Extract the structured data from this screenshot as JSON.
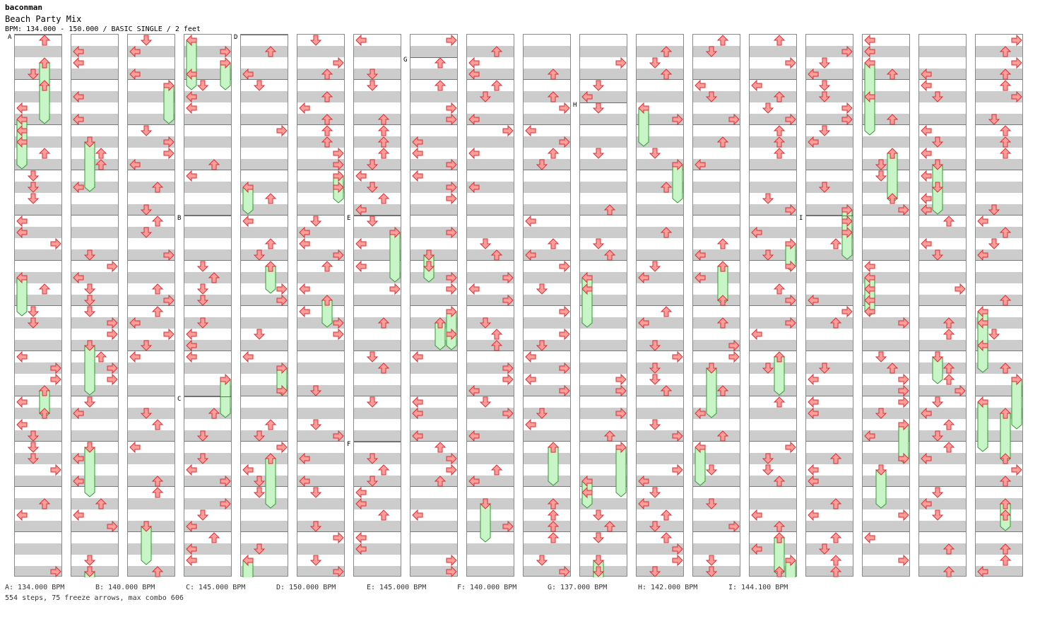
{
  "header": {
    "author": "baconman",
    "song_title": "Beach Party Mix",
    "info": "BPM: 134.000 - 150.000 / BASIC SINGLE / 2 feet"
  },
  "bpm_legend": [
    {
      "label": "A: 134.000 BPM"
    },
    {
      "label": "B: 140.000 BPM"
    },
    {
      "label": "C: 145.000 BPM"
    },
    {
      "label": "D: 150.000 BPM"
    },
    {
      "label": "E: 145.000 BPM"
    },
    {
      "label": "F: 140.000 BPM"
    },
    {
      "label": "G: 137.000 BPM"
    },
    {
      "label": "H: 142.000 BPM"
    },
    {
      "label": "I: 144.100 BPM"
    }
  ],
  "stats": "554 steps, 75 freeze arrows, max combo 606",
  "chart_data": {
    "type": "step-chart",
    "columns": 18,
    "measures_per_column": 12,
    "lanes": [
      "left",
      "down",
      "up",
      "right"
    ],
    "bpm_changes": [
      {
        "label": "A",
        "bpm": 134.0,
        "column": 1,
        "measure": 1
      },
      {
        "label": "B",
        "bpm": 140.0,
        "column": 4,
        "measure": 5
      },
      {
        "label": "C",
        "bpm": 145.0,
        "column": 4,
        "measure": 9
      },
      {
        "label": "D",
        "bpm": 150.0,
        "column": 5,
        "measure": 1
      },
      {
        "label": "E",
        "bpm": 145.0,
        "column": 7,
        "measure": 5
      },
      {
        "label": "F",
        "bpm": 140.0,
        "column": 7,
        "measure": 10
      },
      {
        "label": "G",
        "bpm": 137.0,
        "column": 8,
        "measure": 1.5
      },
      {
        "label": "H",
        "bpm": 142.0,
        "column": 11,
        "measure": 2.5
      },
      {
        "label": "I",
        "bpm": 144.1,
        "column": 15,
        "measure": 5
      }
    ],
    "steps": 554,
    "freeze_arrows": 75,
    "max_combo": 606,
    "colors": {
      "arrow": "#ff9c9c",
      "arrow_stroke": "#d83030",
      "freeze": "#c8f5c8",
      "freeze_stroke": "#2e9a2e",
      "bpm_marker": "#3b6fd0"
    }
  }
}
